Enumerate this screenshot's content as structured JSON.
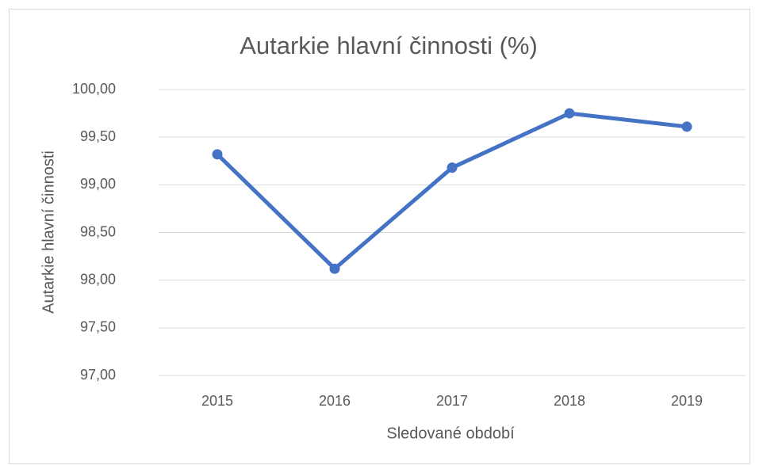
{
  "chart_data": {
    "type": "line",
    "title": "Autarkie hlavní činnosti (%)",
    "x_label": "Sledované období",
    "y_label": "Autarkie hlavní činnosti",
    "categories": [
      "2015",
      "2016",
      "2017",
      "2018",
      "2019"
    ],
    "values": [
      99.32,
      98.12,
      99.18,
      99.75,
      99.61
    ],
    "color": "#4472c4",
    "ylim": [
      97,
      100
    ],
    "yticks": [
      {
        "value": 97,
        "label": "97,00"
      },
      {
        "value": 97.5,
        "label": "97,50"
      },
      {
        "value": 98,
        "label": "98,00"
      },
      {
        "value": 98.5,
        "label": "98,50"
      },
      {
        "value": 99,
        "label": "99,00"
      },
      {
        "value": 99.5,
        "label": "99,50"
      },
      {
        "value": 100,
        "label": "100,00"
      }
    ],
    "grid": true
  }
}
